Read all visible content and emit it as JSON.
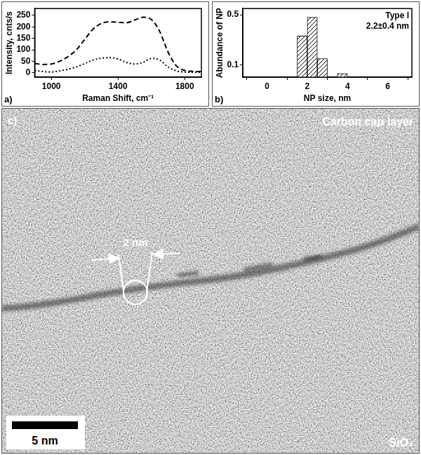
{
  "chart_data": [
    {
      "type": "line",
      "panel_label": "a)",
      "x_label": "Raman Shift, cm⁻¹",
      "y_label": "Intensity, cnts/s",
      "x": [
        900,
        950,
        1000,
        1050,
        1100,
        1150,
        1200,
        1250,
        1300,
        1350,
        1400,
        1450,
        1500,
        1550,
        1600,
        1650,
        1700,
        1750,
        1800,
        1850,
        1900
      ],
      "series": [
        {
          "color": "#000000",
          "line_style": "dashed",
          "values": [
            40,
            36,
            38,
            50,
            70,
            100,
            145,
            190,
            215,
            222,
            220,
            218,
            230,
            242,
            232,
            180,
            90,
            30,
            10,
            6,
            5
          ]
        },
        {
          "color": "#000000",
          "line_style": "dotted",
          "values": [
            10,
            5,
            3,
            8,
            15,
            25,
            40,
            55,
            63,
            66,
            60,
            45,
            38,
            45,
            62,
            55,
            25,
            8,
            3,
            2,
            2
          ]
        }
      ],
      "xlim": [
        900,
        1900
      ],
      "xticks": [
        1000,
        1400,
        1800
      ],
      "ylim": [
        -20,
        280
      ],
      "yticks": [
        0,
        50,
        100,
        150,
        200,
        250
      ],
      "grid": false
    },
    {
      "type": "histogram",
      "panel_label": "b)",
      "x_label": "NP size, nm",
      "y_label": "Abundance of NP",
      "annotations": [
        "Type I",
        "2.2±0.4 nm"
      ],
      "bins": [
        1.5,
        2,
        2.5,
        3,
        3.5,
        4
      ],
      "values": [
        0.33,
        0.48,
        0.15,
        0,
        0.03
      ],
      "color": "#000000",
      "xlim": [
        -1.2,
        7.2
      ],
      "xticks": [
        0,
        2,
        4,
        6
      ],
      "ylim": [
        0,
        0.55
      ],
      "yticks": [
        0.1,
        0.5
      ],
      "grid": false
    }
  ],
  "image_panel": {
    "panel_label": "c)",
    "top_label": "Carbon cap layer",
    "bottom_label": "SiO₂",
    "measurement": "2 nm",
    "scale_bar": "5 nm"
  }
}
